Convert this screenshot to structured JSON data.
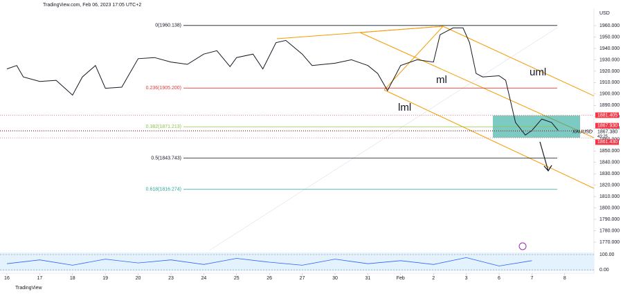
{
  "chart_data": {
    "type": "line",
    "header": "TradingView.com, Feb 06, 2023 17:05 UTC+2",
    "currency": "USD",
    "footer": "TradingView",
    "x": [
      0,
      0.3,
      0.5,
      1,
      1.5,
      2,
      2.3,
      2.7,
      3,
      3.5,
      4,
      4.5,
      5,
      5.5,
      6,
      6.4,
      6.8,
      7,
      7.5,
      7.8,
      8.2,
      8.5,
      9,
      9.3,
      10,
      10.5,
      11,
      11.3,
      11.6,
      12,
      12.5,
      13,
      13.2,
      13.6,
      13.9,
      14.1,
      14.3,
      14.5,
      15,
      15.2,
      15.5,
      15.8,
      16,
      16.3,
      16.6,
      16.8
    ],
    "series": [
      {
        "name": "XAUUSD",
        "color": "#131722",
        "values": [
          1922,
          1925,
          1915,
          1911,
          1912,
          1899,
          1915,
          1925,
          1905,
          1906,
          1931,
          1932,
          1928,
          1926,
          1935,
          1938,
          1924,
          1932,
          1935,
          1922,
          1945,
          1947,
          1935,
          1925,
          1927,
          1930,
          1925,
          1918,
          1903,
          1925,
          1930,
          1928,
          1952,
          1958,
          1958,
          1945,
          1918,
          1915,
          1916,
          1912,
          1875,
          1864,
          1868,
          1878,
          1875,
          1868
        ]
      }
    ],
    "xlim": [
      -0.21,
      17.89
    ],
    "ylim": [
      1762.7,
      1975.2
    ],
    "xticks": [
      {
        "value": 0,
        "label": "16"
      },
      {
        "value": 1,
        "label": "17"
      },
      {
        "value": 2,
        "label": "18"
      },
      {
        "value": 3,
        "label": "19"
      },
      {
        "value": 4,
        "label": "20"
      },
      {
        "value": 5,
        "label": "23"
      },
      {
        "value": 6,
        "label": "24"
      },
      {
        "value": 7,
        "label": "25"
      },
      {
        "value": 8,
        "label": "26"
      },
      {
        "value": 9,
        "label": "27"
      },
      {
        "value": 10,
        "label": "30"
      },
      {
        "value": 11,
        "label": "31"
      },
      {
        "value": 12,
        "label": "Feb"
      },
      {
        "value": 13,
        "label": "2"
      },
      {
        "value": 14,
        "label": "3"
      },
      {
        "value": 15,
        "label": "6"
      },
      {
        "value": 16,
        "label": "7"
      },
      {
        "value": 17,
        "label": "8"
      }
    ],
    "yticks": [
      {
        "value": 1770,
        "label": "1770.000"
      },
      {
        "value": 1780,
        "label": "1780.000"
      },
      {
        "value": 1790,
        "label": "1790.000"
      },
      {
        "value": 1800,
        "label": "1800.000"
      },
      {
        "value": 1810,
        "label": "1810.000"
      },
      {
        "value": 1820,
        "label": "1820.000"
      },
      {
        "value": 1830,
        "label": "1830.000"
      },
      {
        "value": 1840,
        "label": "1840.000"
      },
      {
        "value": 1850,
        "label": "1850.000"
      },
      {
        "value": 1860,
        "label": "1860.000"
      },
      {
        "value": 1870,
        "label": "1870.000"
      },
      {
        "value": 1880,
        "label": "1880.000"
      },
      {
        "value": 1890,
        "label": "1890.000"
      },
      {
        "value": 1900,
        "label": "1900.000"
      },
      {
        "value": 1910,
        "label": "1910.000"
      },
      {
        "value": 1920,
        "label": "1920.000"
      },
      {
        "value": 1930,
        "label": "1930.000"
      },
      {
        "value": 1940,
        "label": "1940.000"
      },
      {
        "value": 1950,
        "label": "1950.000"
      },
      {
        "value": 1960,
        "label": "1960.000"
      }
    ],
    "fib_levels": [
      {
        "label": "0(1960.138)",
        "value": 1960.138,
        "color": "#131722"
      },
      {
        "label": "0.236(1905.200)",
        "value": 1905.2,
        "color": "#e53935"
      },
      {
        "label": "0.382(1871.213)",
        "value": 1871.213,
        "color": "#8bc34a"
      },
      {
        "label": "0.5(1843.743)",
        "value": 1843.743,
        "color": "#131722"
      },
      {
        "label": "0.618(1816.274)",
        "value": 1816.274,
        "color": "#26a69a"
      }
    ],
    "price_labels": [
      {
        "value": 1881.405,
        "label": "1881.405",
        "color": "#f23645"
      },
      {
        "value": 1867.93,
        "label": "1867.930",
        "color": "#f23645"
      },
      {
        "value": 1867.38,
        "label": "1867.380",
        "color": "#ffffff"
      },
      {
        "value": 1861.43,
        "label": "1861.430",
        "color": "#f23645"
      }
    ],
    "countdown": "43:25",
    "pitchfork_labels": [
      "uml",
      "ml",
      "lml"
    ],
    "oscillator": {
      "ylim": [
        0,
        100
      ],
      "yticks": [
        {
          "value": 100,
          "label": "100.00"
        },
        {
          "value": 0,
          "label": "0.00"
        }
      ],
      "x": [
        0,
        1,
        2,
        3,
        4,
        5,
        6,
        7,
        8,
        9,
        10,
        11,
        12,
        13,
        14,
        15,
        16
      ],
      "values": [
        40,
        65,
        30,
        70,
        45,
        65,
        35,
        75,
        50,
        30,
        70,
        40,
        60,
        35,
        80,
        25,
        60
      ],
      "color": "#2962ff"
    }
  }
}
